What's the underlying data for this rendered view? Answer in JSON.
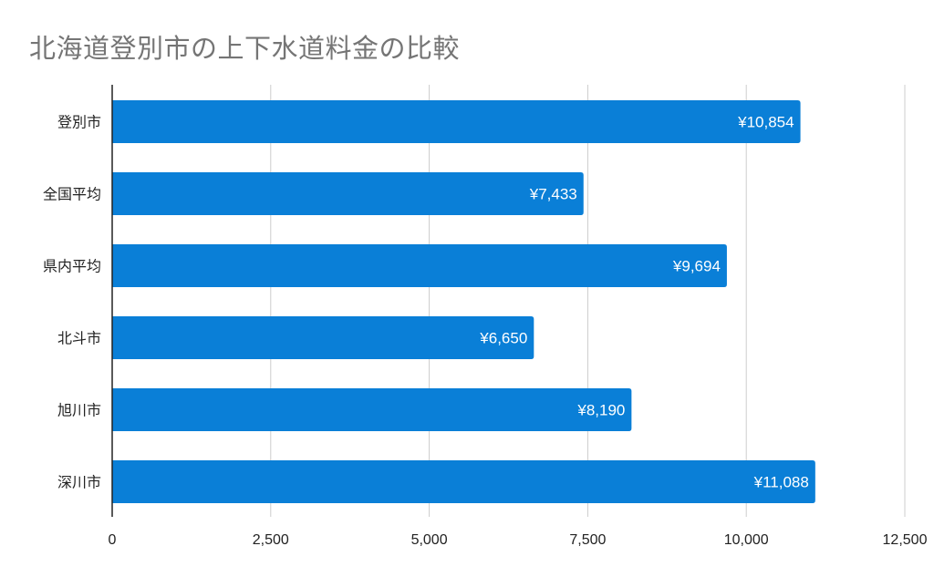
{
  "chart_data": {
    "type": "bar",
    "orientation": "horizontal",
    "title": "北海道登別市の上下水道料金の比較",
    "categories": [
      "登別市",
      "全国平均",
      "県内平均",
      "北斗市",
      "旭川市",
      "深川市"
    ],
    "values": [
      10854,
      7433,
      9694,
      6650,
      8190,
      11088
    ],
    "data_labels": [
      "¥10,854",
      "¥7,433",
      "¥9,694",
      "¥6,650",
      "¥8,190",
      "¥11,088"
    ],
    "xlim": [
      0,
      12500
    ],
    "xticks": [
      0,
      2500,
      5000,
      7500,
      10000,
      12500
    ],
    "xtick_labels": [
      "0",
      "2,500",
      "5,000",
      "7,500",
      "10,000",
      "12,500"
    ],
    "grid": true,
    "bar_color": "#0a7fd7"
  }
}
